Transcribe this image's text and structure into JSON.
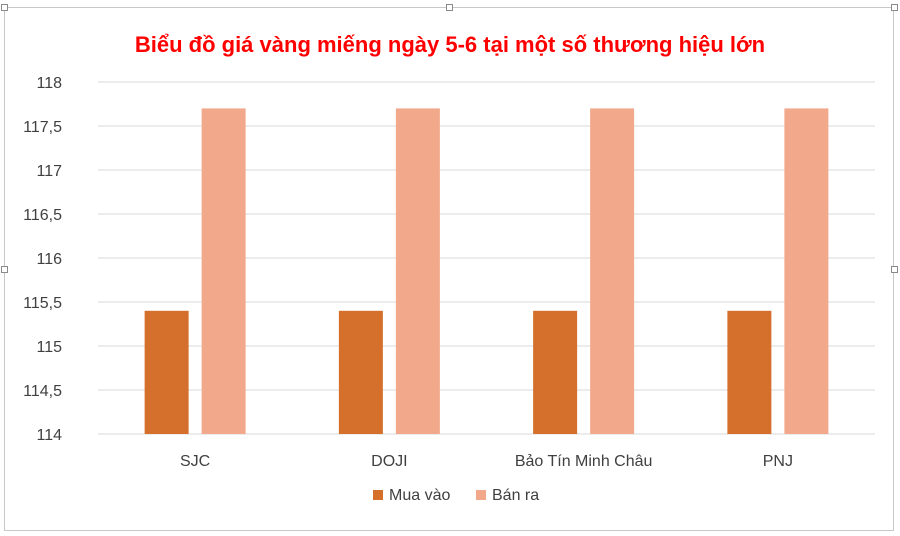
{
  "chart_data": {
    "type": "bar",
    "title": "Biểu đồ giá vàng miếng ngày 5-6 tại một số thương hiệu lớn",
    "categories": [
      "SJC",
      "DOJI",
      "Bảo Tín Minh Châu",
      "PNJ"
    ],
    "series": [
      {
        "name": "Mua vào",
        "values": [
          115.4,
          115.4,
          115.4,
          115.4
        ],
        "color": "#d4702c"
      },
      {
        "name": "Bán ra",
        "values": [
          117.7,
          117.7,
          117.7,
          117.7
        ],
        "color": "#f2a98b"
      }
    ],
    "ylim": [
      114,
      118
    ],
    "yticks": [
      "114",
      "114,5",
      "115",
      "115,5",
      "116",
      "116,5",
      "117",
      "117,5",
      "118"
    ],
    "grid": true,
    "legend_position": "bottom",
    "title_color": "#ff0000",
    "grid_color": "#d9d9d9"
  }
}
